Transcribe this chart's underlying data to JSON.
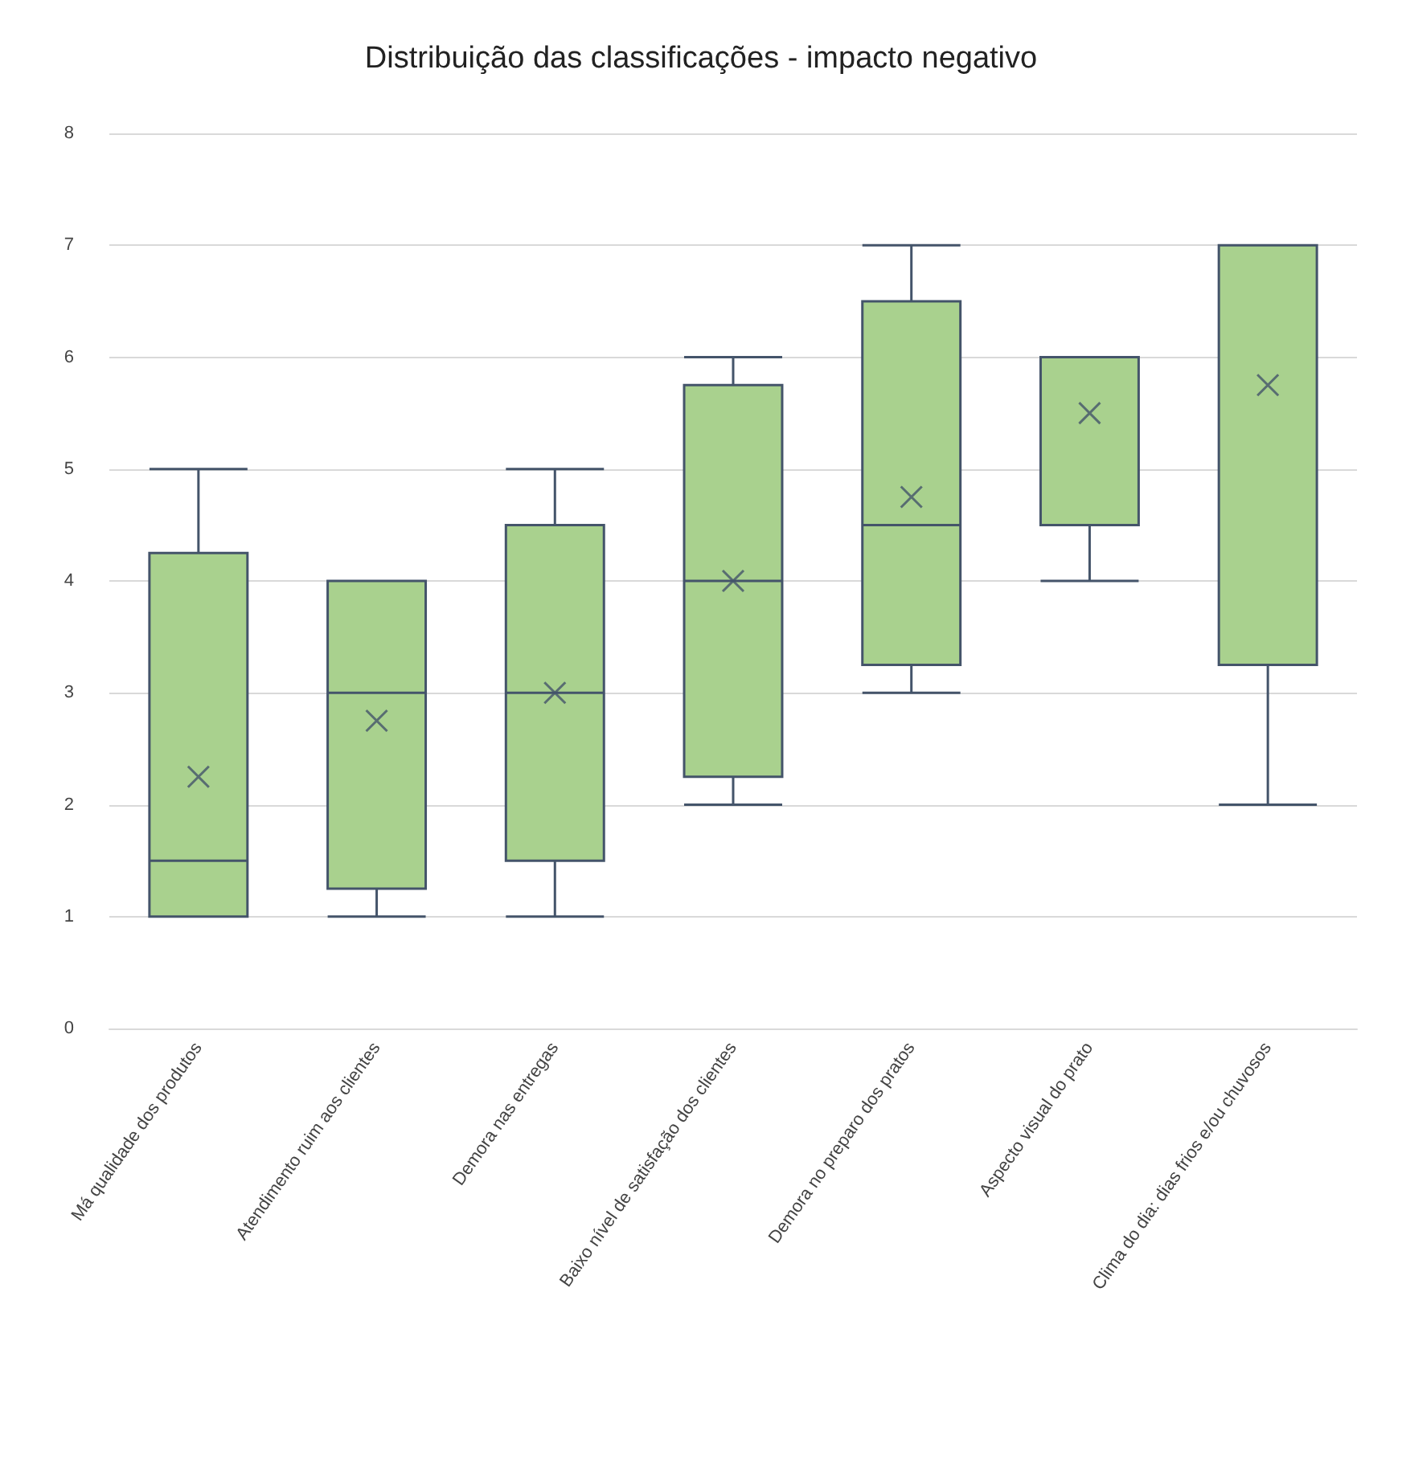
{
  "chart_data": {
    "type": "box",
    "title": "Distribuição das classificações - impacto negativo",
    "categories": [
      "Má qualidade dos produtos",
      "Atendimento ruim aos clientes",
      "Demora nas entregas",
      "Baixo nível de satisfação dos clientes",
      "Demora no preparo dos pratos",
      "Aspecto visual do prato",
      "Clima do dia: dias frios e/ou chuvosos"
    ],
    "boxes": [
      {
        "low": 1,
        "q1": 1,
        "median": 1.5,
        "q3": 4.25,
        "high": 5,
        "mean": 2.25
      },
      {
        "low": 1,
        "q1": 1.25,
        "median": 3,
        "q3": 4,
        "high": 4,
        "mean": 2.75
      },
      {
        "low": 1,
        "q1": 1.5,
        "median": 3,
        "q3": 4.5,
        "high": 5,
        "mean": 3
      },
      {
        "low": 2,
        "q1": 2.25,
        "median": 4,
        "q3": 5.75,
        "high": 6,
        "mean": 4
      },
      {
        "low": 3,
        "q1": 3.25,
        "median": 4.5,
        "q3": 6.5,
        "high": 7,
        "mean": 4.75
      },
      {
        "low": 4,
        "q1": 4.5,
        "median": 6,
        "q3": 6,
        "high": 6,
        "mean": 5.5
      },
      {
        "low": 2,
        "q1": 3.25,
        "median": 7,
        "q3": 7,
        "high": 7,
        "mean": 5.75
      }
    ],
    "color": "#a9d18e",
    "ylim": [
      0,
      8
    ],
    "yticks": [
      0,
      1,
      2,
      3,
      4,
      5,
      6,
      7,
      8
    ],
    "grid": "y"
  }
}
